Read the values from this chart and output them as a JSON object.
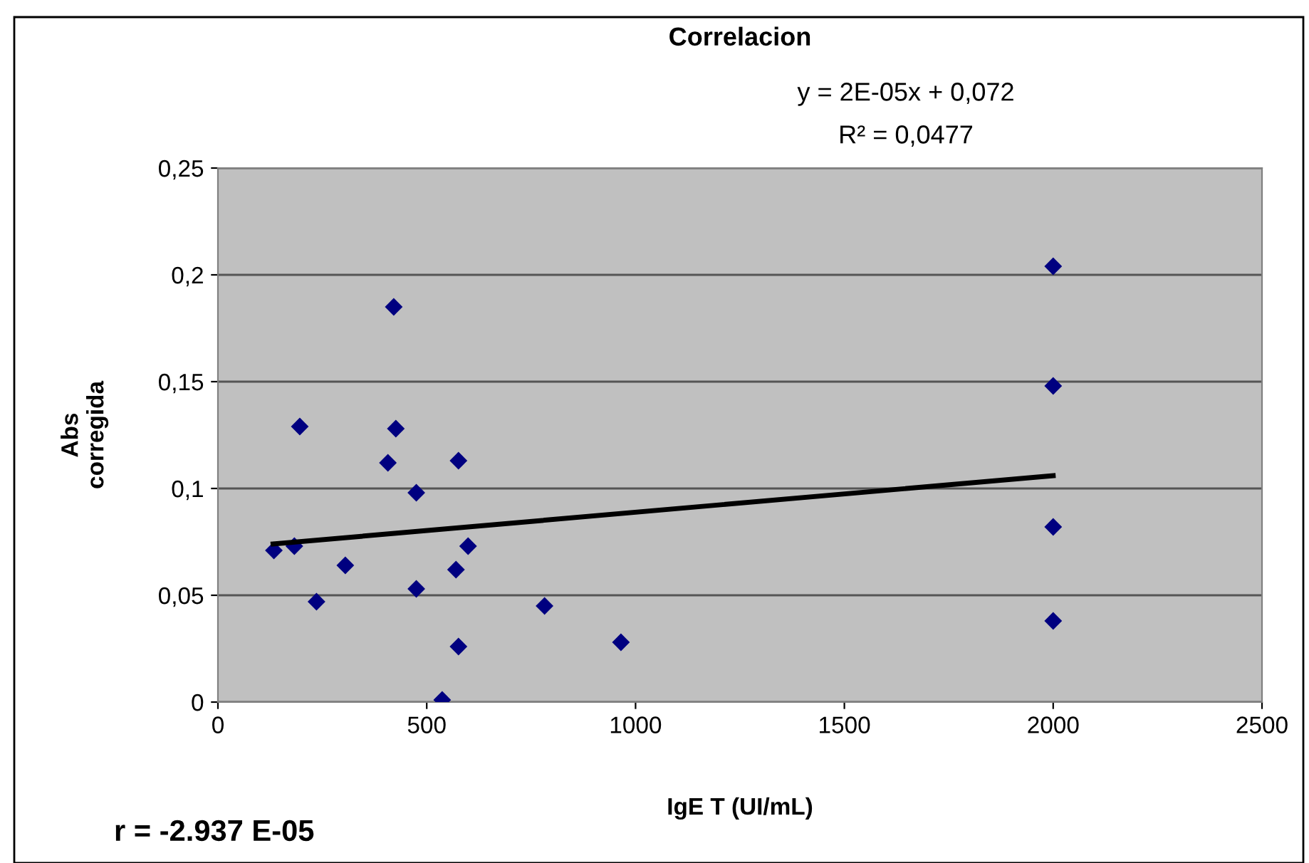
{
  "chart_data": {
    "type": "scatter",
    "title": "Correlacion",
    "xlabel": "IgE T (UI/mL)",
    "ylabel": "Abs\ncorregida",
    "series": [
      {
        "color": "#000080",
        "marker": "diamond",
        "x": [
          134,
          183,
          196,
          236,
          305,
          421,
          426,
          407,
          475,
          475,
          576,
          570,
          599,
          576,
          537,
          782,
          965,
          2000,
          2000,
          2000,
          2000
        ],
        "values": [
          0.071,
          0.073,
          0.129,
          0.047,
          0.064,
          0.185,
          0.128,
          0.112,
          0.098,
          0.053,
          0.113,
          0.062,
          0.073,
          0.026,
          0.001,
          0.045,
          0.028,
          0.204,
          0.148,
          0.082,
          0.038
        ]
      },
      {
        "type": "line",
        "color": "#000000",
        "marker": "none",
        "x": [
          132,
          2000
        ],
        "values": [
          0.074,
          0.106
        ]
      }
    ],
    "annotations": [
      "y = 2E-05x + 0,072",
      "R² = 0,0477",
      "r = -2.937 E-05"
    ],
    "xlim": [
      0,
      2500
    ],
    "xticks": [
      0,
      500,
      1000,
      1500,
      2000,
      2500
    ],
    "ylim": [
      0,
      0.25
    ],
    "yticks": [
      {
        "value": 0,
        "label": "0"
      },
      {
        "value": 0.05,
        "label": "0,05"
      },
      {
        "value": 0.1,
        "label": "0,1"
      },
      {
        "value": 0.15,
        "label": "0,15"
      },
      {
        "value": 0.2,
        "label": "0,2"
      },
      {
        "value": 0.25,
        "label": "0,25"
      }
    ],
    "grid": "y",
    "legend": false
  }
}
